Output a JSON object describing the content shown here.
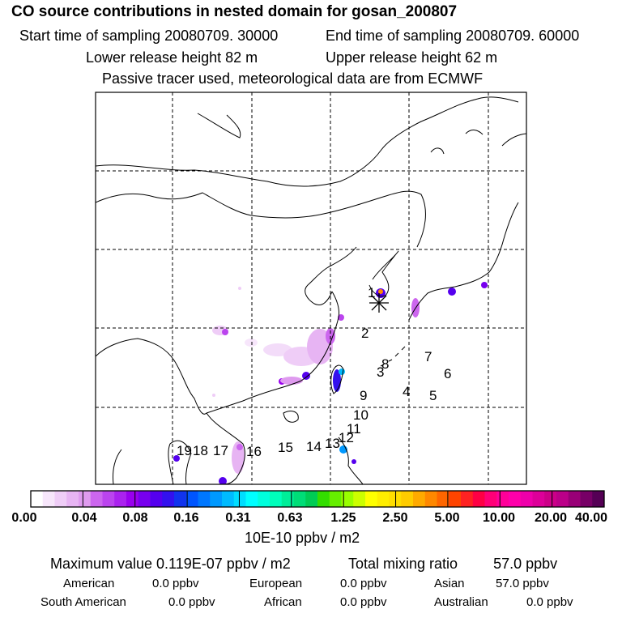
{
  "title": "CO  source contributions in nested domain for gosan_200807",
  "sampling": {
    "start": "Start time of sampling 20080709. 30000",
    "end": "End time of sampling 20080709. 60000"
  },
  "release": {
    "lower": "Lower release height   82 m",
    "upper": "Upper release height   62 m"
  },
  "note": "Passive tracer used, meteorological data are from ECMWF",
  "site_marker": "gosan-receptor",
  "track_labels": [
    "1",
    "2",
    "3",
    "4",
    "5",
    "6",
    "7",
    "8",
    "9",
    "10",
    "11",
    "12",
    "13",
    "14",
    "15",
    "16",
    "17",
    "18",
    "19"
  ],
  "colorbar": {
    "labels": [
      "0.00",
      "0.04",
      "0.08",
      "0.16",
      "0.31",
      "0.63",
      "1.25",
      "2.50",
      "5.00",
      "10.00",
      "20.00",
      "40.00"
    ],
    "unit": "10E-10 ppbv / m2",
    "colors": [
      "#ffffff",
      "#f7e6fb",
      "#efcdf7",
      "#e7b4f3",
      "#df9bef",
      "#cc66ee",
      "#bb44ee",
      "#aa22ee",
      "#9900ee",
      "#7700ee",
      "#5500ee",
      "#3311ee",
      "#1133ee",
      "#0055ff",
      "#0077ff",
      "#0099ff",
      "#00bbff",
      "#00ddff",
      "#00ffff",
      "#00ffdd",
      "#00ffbb",
      "#00ee99",
      "#00dd77",
      "#00cc55",
      "#33dd00",
      "#66ee00",
      "#99ff00",
      "#ccff00",
      "#ffff00",
      "#ffee00",
      "#ffdd00",
      "#ffcc00",
      "#ffaa00",
      "#ff8800",
      "#ff6600",
      "#ff4400",
      "#ff2222",
      "#ff0044",
      "#ff0077",
      "#ff0099",
      "#ff00aa",
      "#ee00aa",
      "#dd0099",
      "#cc0088",
      "#bb0088",
      "#990077",
      "#770066",
      "#550055"
    ]
  },
  "summary": {
    "max_label": "Maximum value  0.119E-07 ppbv / m2",
    "total_label": "Total mixing ratio",
    "total_value": "57.0 ppbv"
  },
  "regions": [
    {
      "name": "American",
      "value": "0.0 ppbv"
    },
    {
      "name": "European",
      "value": "0.0 ppbv"
    },
    {
      "name": "Asian",
      "value": "57.0 ppbv"
    },
    {
      "name": "South American",
      "value": "0.0 ppbv"
    },
    {
      "name": "African",
      "value": "0.0 ppbv"
    },
    {
      "name": "Australian",
      "value": "0.0 ppbv"
    }
  ]
}
